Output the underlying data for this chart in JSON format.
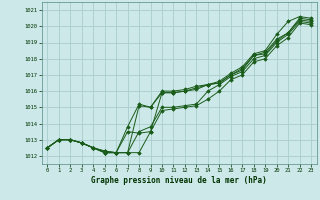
{
  "xlabel": "Graphe pression niveau de la mer (hPa)",
  "background_color": "#cce8e8",
  "plot_bg_color": "#cce8e8",
  "grid_color": "#aacccc",
  "line_color": "#1a5c1a",
  "marker_color": "#1a5c1a",
  "ylim": [
    1011.5,
    1021.5
  ],
  "xlim": [
    -0.5,
    23.5
  ],
  "yticks": [
    1012,
    1013,
    1014,
    1015,
    1016,
    1017,
    1018,
    1019,
    1020,
    1021
  ],
  "xticks": [
    0,
    1,
    2,
    3,
    4,
    5,
    6,
    7,
    8,
    9,
    10,
    11,
    12,
    13,
    14,
    15,
    16,
    17,
    18,
    19,
    20,
    21,
    22,
    23
  ],
  "series": [
    [
      1012.5,
      1013.0,
      1013.0,
      1012.8,
      1012.5,
      1012.3,
      1012.2,
      1012.2,
      1015.1,
      1015.0,
      1016.0,
      1016.0,
      1016.1,
      1016.3,
      1016.4,
      1016.6,
      1017.1,
      1017.5,
      1018.3,
      1018.5,
      1019.5,
      1020.3,
      1020.6,
      1020.5
    ],
    [
      1012.5,
      1013.0,
      1013.0,
      1012.8,
      1012.5,
      1012.3,
      1012.2,
      1013.8,
      1015.2,
      1015.0,
      1015.9,
      1015.9,
      1016.0,
      1016.2,
      1016.4,
      1016.5,
      1017.0,
      1017.4,
      1018.2,
      1018.4,
      1019.2,
      1019.6,
      1020.5,
      1020.4
    ],
    [
      1012.5,
      1013.0,
      1013.0,
      1012.8,
      1012.5,
      1012.2,
      1012.2,
      1013.5,
      1013.4,
      1013.5,
      1015.9,
      1015.9,
      1016.0,
      1016.1,
      1016.4,
      1016.5,
      1017.0,
      1017.3,
      1018.2,
      1018.3,
      1019.1,
      1019.6,
      1020.4,
      1020.3
    ],
    [
      1012.5,
      1013.0,
      1013.0,
      1012.8,
      1012.5,
      1012.2,
      1012.2,
      1012.2,
      1013.5,
      1013.8,
      1015.0,
      1015.0,
      1015.1,
      1015.2,
      1016.0,
      1016.4,
      1016.9,
      1017.2,
      1018.0,
      1018.2,
      1019.0,
      1019.5,
      1020.3,
      1020.2
    ],
    [
      1012.5,
      1013.0,
      1013.0,
      1012.8,
      1012.5,
      1012.2,
      1012.2,
      1012.2,
      1012.2,
      1013.5,
      1014.8,
      1014.9,
      1015.0,
      1015.1,
      1015.5,
      1016.0,
      1016.7,
      1017.0,
      1017.8,
      1018.0,
      1018.8,
      1019.3,
      1020.2,
      1020.1
    ]
  ]
}
